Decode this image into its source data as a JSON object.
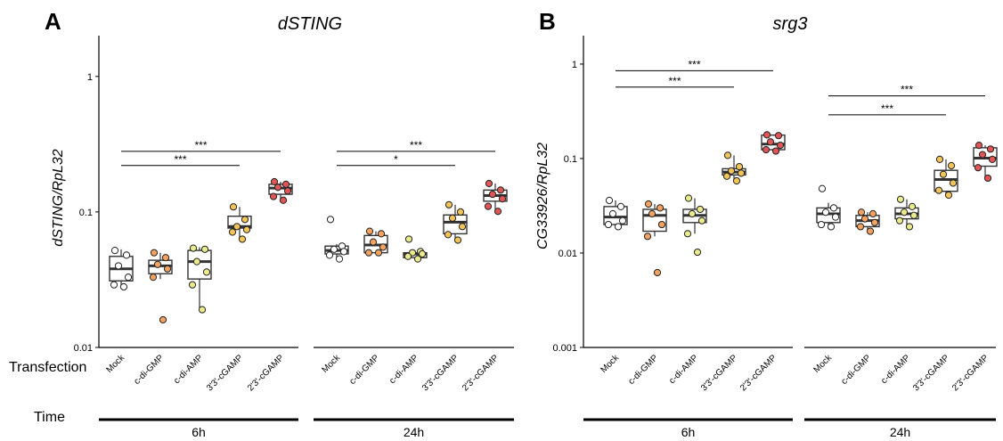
{
  "figure": {
    "row_label_transfection": "Transfection",
    "row_label_time": "Time"
  },
  "chart_data": [
    {
      "type": "box",
      "panel_letter": "A",
      "title": "dSTING",
      "ylabel": "dSTING/RpL32",
      "xlabel": "",
      "y_scale": "log",
      "ylim": [
        0.01,
        2
      ],
      "yticks": [
        0.01,
        0.1,
        1
      ],
      "ytick_labels": [
        "0.01",
        "0.1",
        "1"
      ],
      "grid": false,
      "categories": [
        "Mock",
        "c-di-GMP",
        "c-di-AMP",
        "3'3'-cGAMP",
        "2'3'-cGAMP"
      ],
      "point_colors": [
        "#ffffff",
        "#f4a261",
        "#e9eb8c",
        "#f2c45a",
        "#e05555"
      ],
      "groups": [
        {
          "label": "6h",
          "boxes": [
            {
              "q1": 0.031,
              "median": 0.038,
              "q3": 0.047,
              "whisker_low": 0.028,
              "whisker_high": 0.053,
              "points": [
                0.052,
                0.048,
                0.04,
                0.033,
                0.029,
                0.028
              ]
            },
            {
              "q1": 0.035,
              "median": 0.04,
              "q3": 0.044,
              "whisker_low": 0.032,
              "whisker_high": 0.05,
              "points": [
                0.05,
                0.046,
                0.041,
                0.038,
                0.033,
                0.016
              ]
            },
            {
              "q1": 0.032,
              "median": 0.043,
              "q3": 0.052,
              "whisker_low": 0.019,
              "whisker_high": 0.055,
              "points": [
                0.054,
                0.053,
                0.043,
                0.036,
                0.029,
                0.019
              ]
            },
            {
              "q1": 0.076,
              "median": 0.078,
              "q3": 0.093,
              "whisker_low": 0.063,
              "whisker_high": 0.109,
              "points": [
                0.109,
                0.088,
                0.078,
                0.074,
                0.071,
                0.063
              ]
            },
            {
              "q1": 0.135,
              "median": 0.15,
              "q3": 0.16,
              "whisker_low": 0.122,
              "whisker_high": 0.167,
              "points": [
                0.167,
                0.16,
                0.152,
                0.143,
                0.13,
                0.122
              ]
            }
          ],
          "significance": [
            {
              "from": "Mock",
              "to": "3'3'-cGAMP",
              "label": "***",
              "y": 0.22
            },
            {
              "from": "Mock",
              "to": "2'3'-cGAMP",
              "label": "***",
              "y": 0.28
            }
          ]
        },
        {
          "label": "24h",
          "boxes": [
            {
              "q1": 0.049,
              "median": 0.052,
              "q3": 0.056,
              "whisker_low": 0.045,
              "whisker_high": 0.058,
              "points": [
                0.088,
                0.056,
                0.053,
                0.051,
                0.048,
                0.045
              ]
            },
            {
              "q1": 0.05,
              "median": 0.057,
              "q3": 0.067,
              "whisker_low": 0.05,
              "whisker_high": 0.072,
              "points": [
                0.072,
                0.069,
                0.06,
                0.055,
                0.05,
                0.05
              ]
            },
            {
              "q1": 0.046,
              "median": 0.049,
              "q3": 0.05,
              "whisker_low": 0.045,
              "whisker_high": 0.052,
              "points": [
                0.063,
                0.051,
                0.05,
                0.049,
                0.047,
                0.045
              ]
            },
            {
              "q1": 0.069,
              "median": 0.084,
              "q3": 0.095,
              "whisker_low": 0.062,
              "whisker_high": 0.113,
              "points": [
                0.113,
                0.1,
                0.09,
                0.078,
                0.068,
                0.062
              ]
            },
            {
              "q1": 0.12,
              "median": 0.132,
              "q3": 0.145,
              "whisker_low": 0.101,
              "whisker_high": 0.162,
              "points": [
                0.162,
                0.145,
                0.135,
                0.125,
                0.11,
                0.101
              ]
            }
          ],
          "significance": [
            {
              "from": "Mock",
              "to": "3'3'-cGAMP",
              "label": "*",
              "y": 0.22
            },
            {
              "from": "Mock",
              "to": "2'3'-cGAMP",
              "label": "***",
              "y": 0.28
            }
          ]
        }
      ]
    },
    {
      "type": "box",
      "panel_letter": "B",
      "title": "srg3",
      "ylabel": "CG33926/RpL32",
      "xlabel": "",
      "y_scale": "log",
      "ylim": [
        0.001,
        2
      ],
      "yticks": [
        0.001,
        0.01,
        0.1,
        1
      ],
      "ytick_labels": [
        "0.001",
        "0.01",
        "0.1",
        "1"
      ],
      "grid": false,
      "categories": [
        "Mock",
        "c-di-GMP",
        "c-di-AMP",
        "3'3'-cGAMP",
        "2'3'-cGAMP"
      ],
      "point_colors": [
        "#ffffff",
        "#f4a261",
        "#e9eb8c",
        "#f2c45a",
        "#e05555"
      ],
      "groups": [
        {
          "label": "6h",
          "boxes": [
            {
              "q1": 0.02,
              "median": 0.024,
              "q3": 0.031,
              "whisker_low": 0.019,
              "whisker_high": 0.036,
              "points": [
                0.036,
                0.031,
                0.026,
                0.022,
                0.02,
                0.019
              ]
            },
            {
              "q1": 0.017,
              "median": 0.025,
              "q3": 0.029,
              "whisker_low": 0.015,
              "whisker_high": 0.033,
              "points": [
                0.033,
                0.03,
                0.026,
                0.02,
                0.015,
                0.0062
              ]
            },
            {
              "q1": 0.021,
              "median": 0.025,
              "q3": 0.029,
              "whisker_low": 0.016,
              "whisker_high": 0.038,
              "points": [
                0.038,
                0.029,
                0.026,
                0.022,
                0.016,
                0.0102
              ]
            },
            {
              "q1": 0.067,
              "median": 0.072,
              "q3": 0.078,
              "whisker_low": 0.058,
              "whisker_high": 0.108,
              "points": [
                0.108,
                0.082,
                0.074,
                0.07,
                0.065,
                0.058
              ]
            },
            {
              "q1": 0.124,
              "median": 0.142,
              "q3": 0.177,
              "whisker_low": 0.118,
              "whisker_high": 0.18,
              "points": [
                0.178,
                0.175,
                0.15,
                0.138,
                0.124,
                0.12
              ]
            }
          ],
          "significance": [
            {
              "from": "Mock",
              "to": "3'3'-cGAMP",
              "label": "***",
              "y": 0.57
            },
            {
              "from": "Mock",
              "to": "2'3'-cGAMP",
              "label": "***",
              "y": 0.85
            }
          ]
        },
        {
          "label": "24h",
          "boxes": [
            {
              "q1": 0.021,
              "median": 0.026,
              "q3": 0.03,
              "whisker_low": 0.018,
              "whisker_high": 0.034,
              "points": [
                0.048,
                0.03,
                0.027,
                0.024,
                0.02,
                0.019
              ]
            },
            {
              "q1": 0.019,
              "median": 0.022,
              "q3": 0.025,
              "whisker_low": 0.017,
              "whisker_high": 0.027,
              "points": [
                0.027,
                0.026,
                0.023,
                0.021,
                0.019,
                0.017
              ]
            },
            {
              "q1": 0.023,
              "median": 0.026,
              "q3": 0.03,
              "whisker_low": 0.019,
              "whisker_high": 0.037,
              "points": [
                0.037,
                0.031,
                0.027,
                0.025,
                0.022,
                0.019
              ]
            },
            {
              "q1": 0.045,
              "median": 0.06,
              "q3": 0.075,
              "whisker_low": 0.04,
              "whisker_high": 0.098,
              "points": [
                0.098,
                0.084,
                0.068,
                0.055,
                0.046,
                0.041
              ]
            },
            {
              "q1": 0.083,
              "median": 0.101,
              "q3": 0.13,
              "whisker_low": 0.06,
              "whisker_high": 0.138,
              "points": [
                0.138,
                0.126,
                0.11,
                0.098,
                0.08,
                0.062
              ]
            }
          ],
          "significance": [
            {
              "from": "Mock",
              "to": "3'3'-cGAMP",
              "label": "***",
              "y": 0.29
            },
            {
              "from": "Mock",
              "to": "2'3'-cGAMP",
              "label": "***",
              "y": 0.46
            }
          ]
        }
      ]
    }
  ]
}
